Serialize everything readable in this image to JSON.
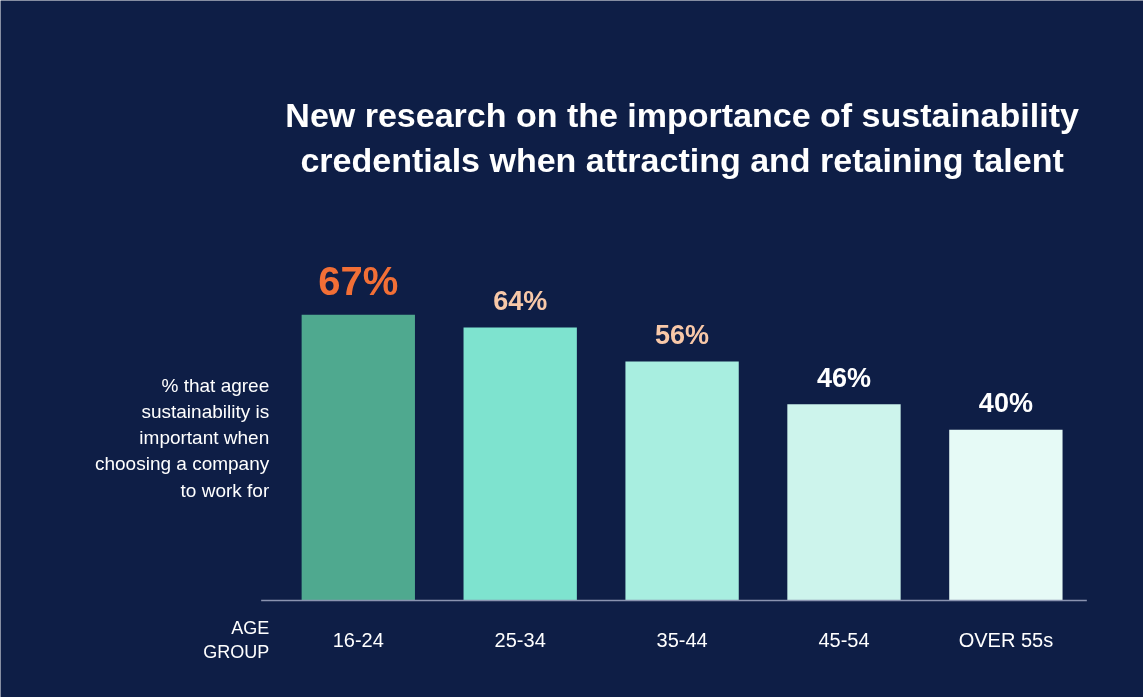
{
  "chart_data": {
    "type": "bar",
    "title": "New research on the importance of sustainability credentials when attracting and retaining talent",
    "ylabel": "% that agree sustainability is important when choosing a company to work for",
    "xlabel": "AGE GROUP",
    "categories": [
      "16-24",
      "25-34",
      "35-44",
      "45-54",
      "OVER 55s"
    ],
    "values": [
      67,
      64,
      56,
      46,
      40
    ],
    "colors": [
      "#4fa98f",
      "#7ee3cf",
      "#a8eee0",
      "#cdf4ec",
      "#e6faf6"
    ],
    "value_labels": [
      "67%",
      "64%",
      "56%",
      "46%",
      "40%"
    ]
  }
}
